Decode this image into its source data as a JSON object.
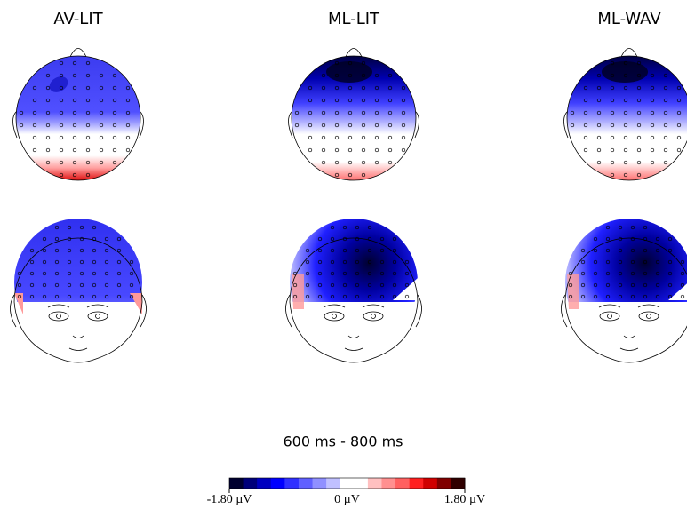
{
  "panels": [
    {
      "title": "AV-LIT"
    },
    {
      "title": "ML-LIT"
    },
    {
      "title": "ML-WAV"
    }
  ],
  "time_window": "600 ms - 800 ms",
  "colorbar": {
    "labels": [
      "-1.80 µV",
      "0 µV",
      "1.80 µV"
    ],
    "colors": [
      "#000030",
      "#00007a",
      "#0000c0",
      "#0000ff",
      "#3030ff",
      "#6060ff",
      "#9090ff",
      "#c0c0ff",
      "#ffffff",
      "#ffffff",
      "#ffc0c0",
      "#ff9090",
      "#ff6060",
      "#ff2020",
      "#d00000",
      "#800000",
      "#300000"
    ]
  }
}
